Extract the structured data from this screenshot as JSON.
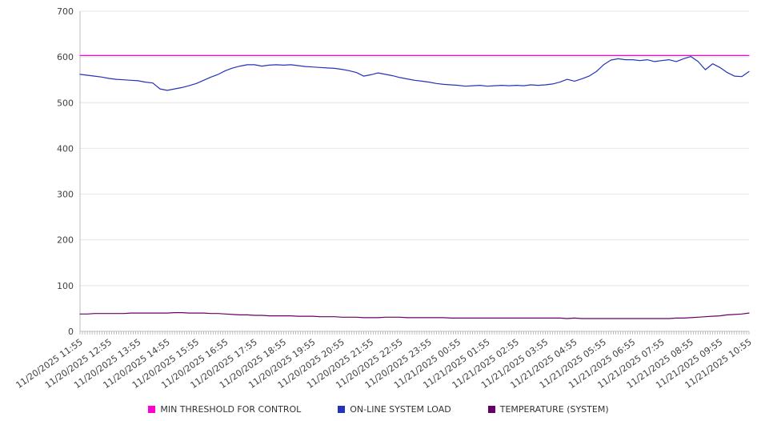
{
  "chart_data": {
    "type": "line",
    "title": "",
    "xlabel": "",
    "ylabel": "",
    "ylim": [
      0,
      700
    ],
    "yticks": [
      0,
      100,
      200,
      300,
      400,
      500,
      600,
      700
    ],
    "grid": true,
    "legend_position": "bottom",
    "categories": [
      "11/20/2025 11:55",
      "11/20/2025 12:55",
      "11/20/2025 13:55",
      "11/20/2025 14:55",
      "11/20/2025 15:55",
      "11/20/2025 16:55",
      "11/20/2025 17:55",
      "11/20/2025 18:55",
      "11/20/2025 19:55",
      "11/20/2025 20:55",
      "11/20/2025 21:55",
      "11/20/2025 22:55",
      "11/20/2025 23:55",
      "11/21/2025 00:55",
      "11/21/2025 01:55",
      "11/21/2025 02:55",
      "11/21/2025 03:55",
      "11/21/2025 04:55",
      "11/21/2025 05:55",
      "11/21/2025 06:55",
      "11/21/2025 07:55",
      "11/21/2025 08:55",
      "11/21/2025 09:55",
      "11/21/2025 10:55"
    ],
    "points_per_category": 4,
    "series": [
      {
        "name": "MIN THRESHOLD FOR CONTROL",
        "color": "#ff00d0",
        "constant": 603
      },
      {
        "name": "ON-LINE SYSTEM LOAD",
        "color": "#2433b8",
        "values": [
          562,
          560,
          558,
          556,
          553,
          551,
          550,
          549,
          548,
          545,
          543,
          530,
          527,
          530,
          533,
          537,
          542,
          549,
          556,
          562,
          570,
          576,
          580,
          583,
          583,
          580,
          582,
          583,
          582,
          583,
          581,
          579,
          578,
          577,
          576,
          575,
          573,
          570,
          566,
          558,
          561,
          565,
          562,
          559,
          555,
          552,
          549,
          547,
          545,
          542,
          540,
          539,
          538,
          536,
          537,
          538,
          536,
          537,
          538,
          537,
          538,
          537,
          539,
          538,
          539,
          541,
          545,
          551,
          547,
          552,
          558,
          568,
          583,
          593,
          596,
          594,
          594,
          592,
          594,
          590,
          592,
          594,
          590,
          596,
          601,
          590,
          572,
          585,
          577,
          566,
          558,
          557,
          568
        ]
      },
      {
        "name": "TEMPERATURE (SYSTEM)",
        "color": "#660066",
        "values": [
          38,
          38,
          39,
          39,
          39,
          39,
          39,
          40,
          40,
          40,
          40,
          40,
          40,
          41,
          41,
          40,
          40,
          40,
          39,
          39,
          38,
          37,
          36,
          36,
          35,
          35,
          34,
          34,
          34,
          34,
          33,
          33,
          33,
          32,
          32,
          32,
          31,
          31,
          31,
          30,
          30,
          30,
          31,
          31,
          31,
          30,
          30,
          30,
          30,
          30,
          30,
          29,
          29,
          29,
          29,
          29,
          29,
          29,
          29,
          29,
          29,
          29,
          29,
          29,
          29,
          29,
          29,
          28,
          29,
          28,
          28,
          28,
          28,
          28,
          28,
          28,
          28,
          28,
          28,
          28,
          28,
          28,
          29,
          29,
          30,
          31,
          32,
          33,
          34,
          36,
          37,
          38,
          40
        ]
      }
    ]
  }
}
